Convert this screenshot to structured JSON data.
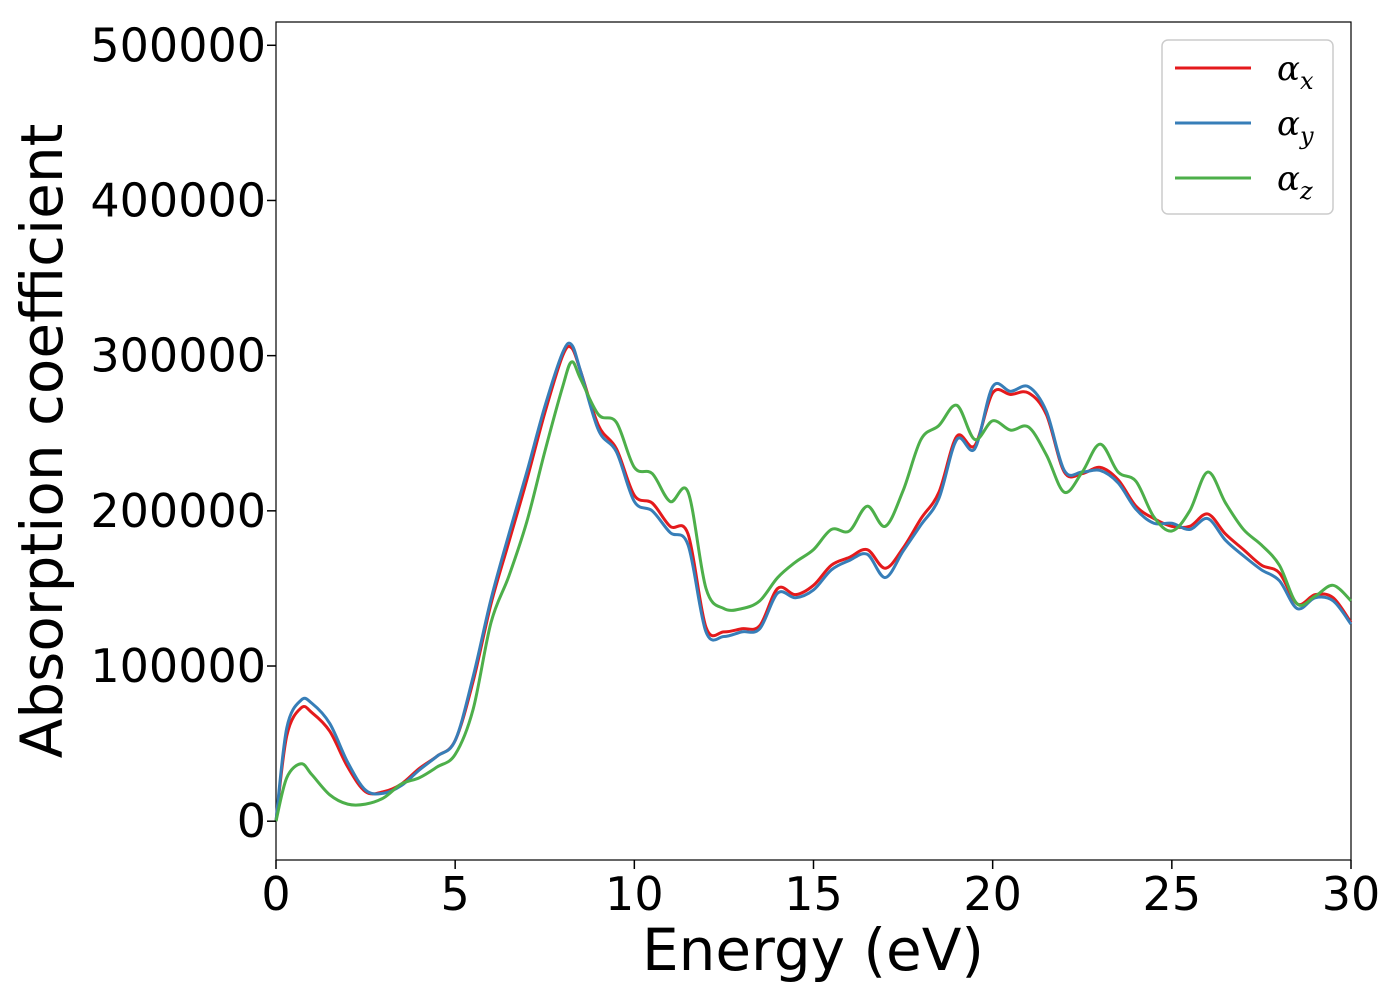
{
  "chart_data": {
    "type": "line",
    "title": "",
    "xlabel": "Energy (eV)",
    "ylabel": "Absorption coefficient",
    "xlim": [
      0,
      30
    ],
    "ylim": [
      -25000,
      515000
    ],
    "xticks": [
      0,
      5,
      10,
      15,
      20,
      25,
      30
    ],
    "yticks": [
      0,
      100000,
      200000,
      300000,
      400000,
      500000
    ],
    "xtick_labels": [
      "0",
      "5",
      "10",
      "15",
      "20",
      "25",
      "30"
    ],
    "ytick_labels": [
      "0",
      "100000",
      "200000",
      "300000",
      "400000",
      "500000"
    ],
    "grid": false,
    "legend_position": "top-right",
    "x": [
      0,
      0.3,
      0.7,
      1.0,
      1.5,
      2.0,
      2.5,
      3.0,
      3.5,
      4.0,
      4.5,
      5.0,
      5.5,
      6.0,
      6.5,
      7.0,
      7.5,
      8.0,
      8.25,
      8.5,
      9.0,
      9.5,
      10.0,
      10.5,
      11.0,
      11.5,
      12.0,
      12.5,
      13.0,
      13.5,
      14.0,
      14.5,
      15.0,
      15.5,
      16.0,
      16.5,
      17.0,
      17.5,
      18.0,
      18.5,
      19.0,
      19.5,
      20.0,
      20.5,
      21.0,
      21.5,
      22.0,
      22.5,
      23.0,
      23.5,
      24.0,
      24.5,
      25.0,
      25.5,
      26.0,
      26.5,
      27.0,
      27.5,
      28.0,
      28.5,
      29.0,
      29.5,
      30.0
    ],
    "series": [
      {
        "name": "α_x",
        "label_main": "α",
        "label_sub": "x",
        "color": "#e41a1c",
        "values": [
          0,
          55000,
          73000,
          70000,
          58000,
          35000,
          19000,
          19000,
          24000,
          34000,
          42000,
          52000,
          90000,
          140000,
          180000,
          220000,
          263000,
          300000,
          305000,
          290000,
          255000,
          240000,
          210000,
          205000,
          190000,
          185000,
          125000,
          122000,
          124000,
          126000,
          150000,
          146000,
          152000,
          165000,
          170000,
          175000,
          163000,
          176000,
          195000,
          212000,
          248000,
          242000,
          276000,
          275000,
          276000,
          262000,
          225000,
          224000,
          228000,
          220000,
          203000,
          195000,
          190000,
          190000,
          198000,
          185000,
          175000,
          165000,
          160000,
          140000,
          146000,
          144000,
          128000
        ]
      },
      {
        "name": "α_y",
        "label_main": "α",
        "label_sub": "y",
        "color": "#377eb8",
        "values": [
          0,
          60000,
          78000,
          76000,
          63000,
          38000,
          20000,
          18000,
          23000,
          33000,
          42000,
          52000,
          93000,
          143000,
          185000,
          225000,
          267000,
          302000,
          307000,
          290000,
          252000,
          238000,
          206000,
          200000,
          186000,
          178000,
          122000,
          119000,
          122000,
          124000,
          147000,
          144000,
          149000,
          162000,
          168000,
          172000,
          157000,
          174000,
          191000,
          208000,
          246000,
          240000,
          280000,
          277000,
          280000,
          264000,
          226000,
          225000,
          226000,
          218000,
          201000,
          192000,
          192000,
          188000,
          195000,
          181000,
          171000,
          162000,
          155000,
          137000,
          144000,
          142000,
          127000
        ]
      },
      {
        "name": "α_z",
        "label_main": "α",
        "label_sub": "z",
        "color": "#4daf4a",
        "values": [
          0,
          28000,
          37000,
          30000,
          17000,
          11000,
          11000,
          15000,
          24000,
          28000,
          35000,
          43000,
          72000,
          128000,
          158000,
          193000,
          238000,
          280000,
          296000,
          285000,
          262000,
          257000,
          228000,
          224000,
          206000,
          212000,
          150000,
          137000,
          137000,
          142000,
          157000,
          167000,
          175000,
          188000,
          187000,
          203000,
          190000,
          213000,
          246000,
          255000,
          268000,
          246000,
          258000,
          252000,
          254000,
          236000,
          212000,
          225000,
          243000,
          225000,
          219000,
          196000,
          187000,
          200000,
          225000,
          205000,
          188000,
          178000,
          165000,
          140000,
          145000,
          152000,
          142000
        ]
      }
    ]
  }
}
